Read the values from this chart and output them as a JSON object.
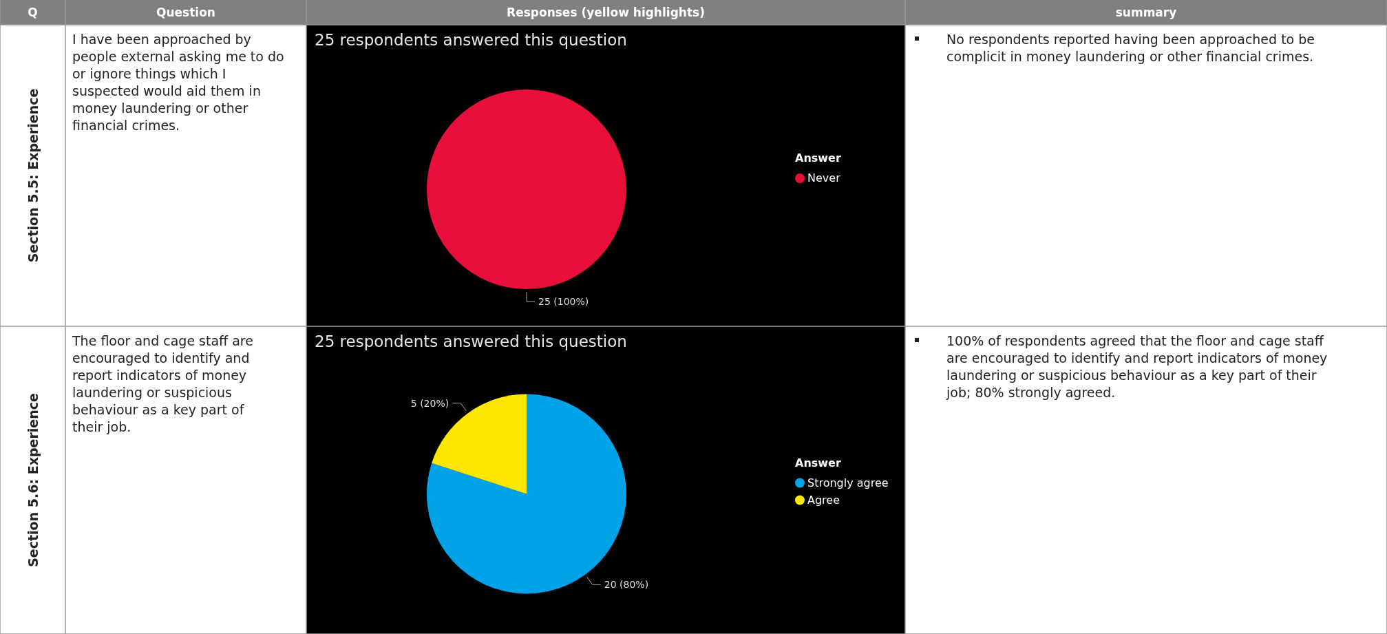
{
  "chart_data": [
    {
      "type": "other",
      "annotations": [
        "Q",
        "Question",
        "Responses (yellow highlights)",
        "summary"
      ]
    },
    {
      "type": "other",
      "title": "Section 5.5: Experience",
      "annotations": [
        "I have been approached by people external asking me to do or ignore things which I suspected would aid them in money laundering or other financial crimes."
      ]
    },
    {
      "type": "pie",
      "title": "25 respondents answered this question",
      "legend_title": "Answer",
      "legend": "right",
      "categories": [
        "Never"
      ],
      "values": [
        25
      ],
      "colors": [
        "#e8103a"
      ],
      "value_labels": [
        "25 (100%)"
      ]
    },
    {
      "type": "other",
      "annotations": [
        "No respondents reported having been approached to be complicit in money laundering or other financial crimes."
      ]
    },
    {
      "type": "other",
      "title": "Section 5.6: Experience",
      "annotations": [
        "The floor and cage staff are encouraged to identify and report indicators of money laundering or suspicious behaviour as a key part of their job."
      ]
    },
    {
      "type": "pie",
      "title": "25 respondents answered this question",
      "legend_title": "Answer",
      "legend": "right",
      "categories": [
        "Strongly agree",
        "Agree"
      ],
      "values": [
        20,
        5
      ],
      "colors": [
        "#00a2e8",
        "#ffe600"
      ],
      "value_labels": [
        "20 (80%)",
        "5 (20%)"
      ]
    },
    {
      "type": "other",
      "annotations": [
        "100% of respondents agreed that the floor and cage staff are encouraged to identify and report indicators of money laundering or suspicious behaviour as a key part of their job; 80% strongly agreed."
      ]
    }
  ]
}
